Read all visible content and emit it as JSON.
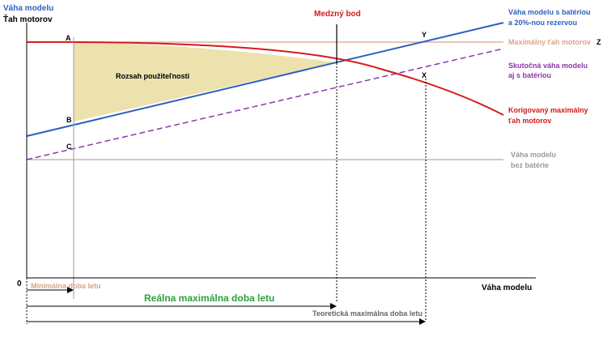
{
  "axes": {
    "y_title_line1": "Váha modelu",
    "y_title_line2": "Ťah motorov",
    "x_title": "Váha modelu",
    "origin": "0"
  },
  "points": {
    "a": "A",
    "b": "B",
    "c": "C",
    "x": "X",
    "y": "Y",
    "z": "Z"
  },
  "annotations": {
    "medzny_bod": "Medzný bod",
    "rozsah": "Rozsah použiteľnosti",
    "min_doba": "Minimálna doba letu",
    "realna_doba": "Reálna maximálna doba letu",
    "teoreticka_doba": "Teoretická maximálna doba letu"
  },
  "curves": {
    "battery_reserve": {
      "line1": "Váha modelu s batériou",
      "line2": "a 20%-nou rezervou",
      "color": "#2e5fbf"
    },
    "max_thrust": {
      "label": "Maximálny ťah motorov",
      "color": "#d9a48a"
    },
    "actual_weight": {
      "line1": "Skutočná váha modelu",
      "line2": "aj s batériou",
      "color": "#8b3aa8"
    },
    "corrected_thrust": {
      "line1": "Korigovaný maximálny",
      "line2": "ťah motorov",
      "color": "#d61a1a"
    },
    "no_battery": {
      "line1": "Váha modelu",
      "line2": "bez batérie",
      "color": "#9a9a9a"
    }
  },
  "colors": {
    "region_fill": "#ede1ae",
    "realna_doba": "#2ea043",
    "min_doba": "#d9a48a",
    "axis": "#000000"
  }
}
